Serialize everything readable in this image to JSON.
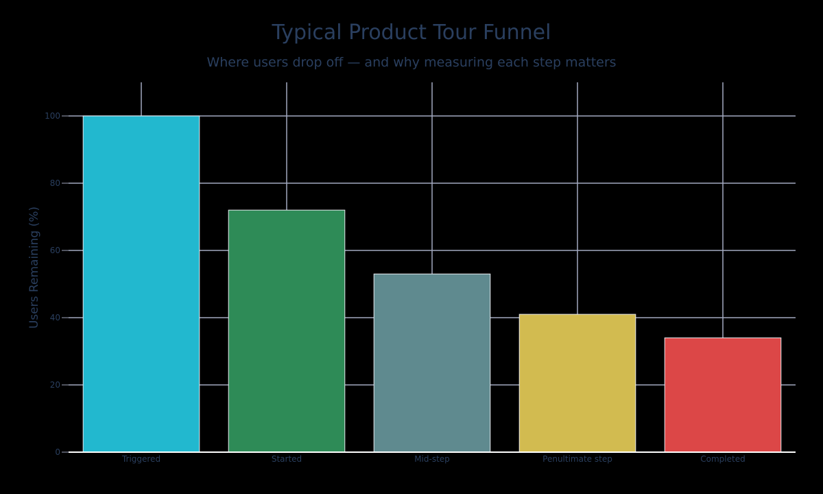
{
  "chart": {
    "title": "Typical Product Tour Funnel",
    "subtitle": "Where users drop off — and why measuring each step matters",
    "ylabel": "Users Remaining (%)",
    "xlabel": ""
  },
  "colors": {
    "background": "#000000",
    "grid": "#a2a9c0",
    "zeroline": "#ffffff",
    "text": "#2a3f5f",
    "bar_outline": "#e8eaf0"
  },
  "chart_data": {
    "type": "bar",
    "title": "Typical Product Tour Funnel",
    "subtitle": "Where users drop off — and why measuring each step matters",
    "xlabel": "",
    "ylabel": "Users Remaining (%)",
    "categories": [
      "Triggered",
      "Started",
      "Mid-step",
      "Penultimate step",
      "Completed"
    ],
    "values": [
      100,
      72,
      53,
      41,
      34
    ],
    "bar_colors": [
      "#22b8cf",
      "#2e8b57",
      "#5f8a8f",
      "#d2bb50",
      "#dc4747"
    ],
    "ylim": [
      0,
      110
    ],
    "yticks": [
      0,
      20,
      40,
      60,
      80,
      100
    ],
    "grid": true,
    "legend": null
  }
}
